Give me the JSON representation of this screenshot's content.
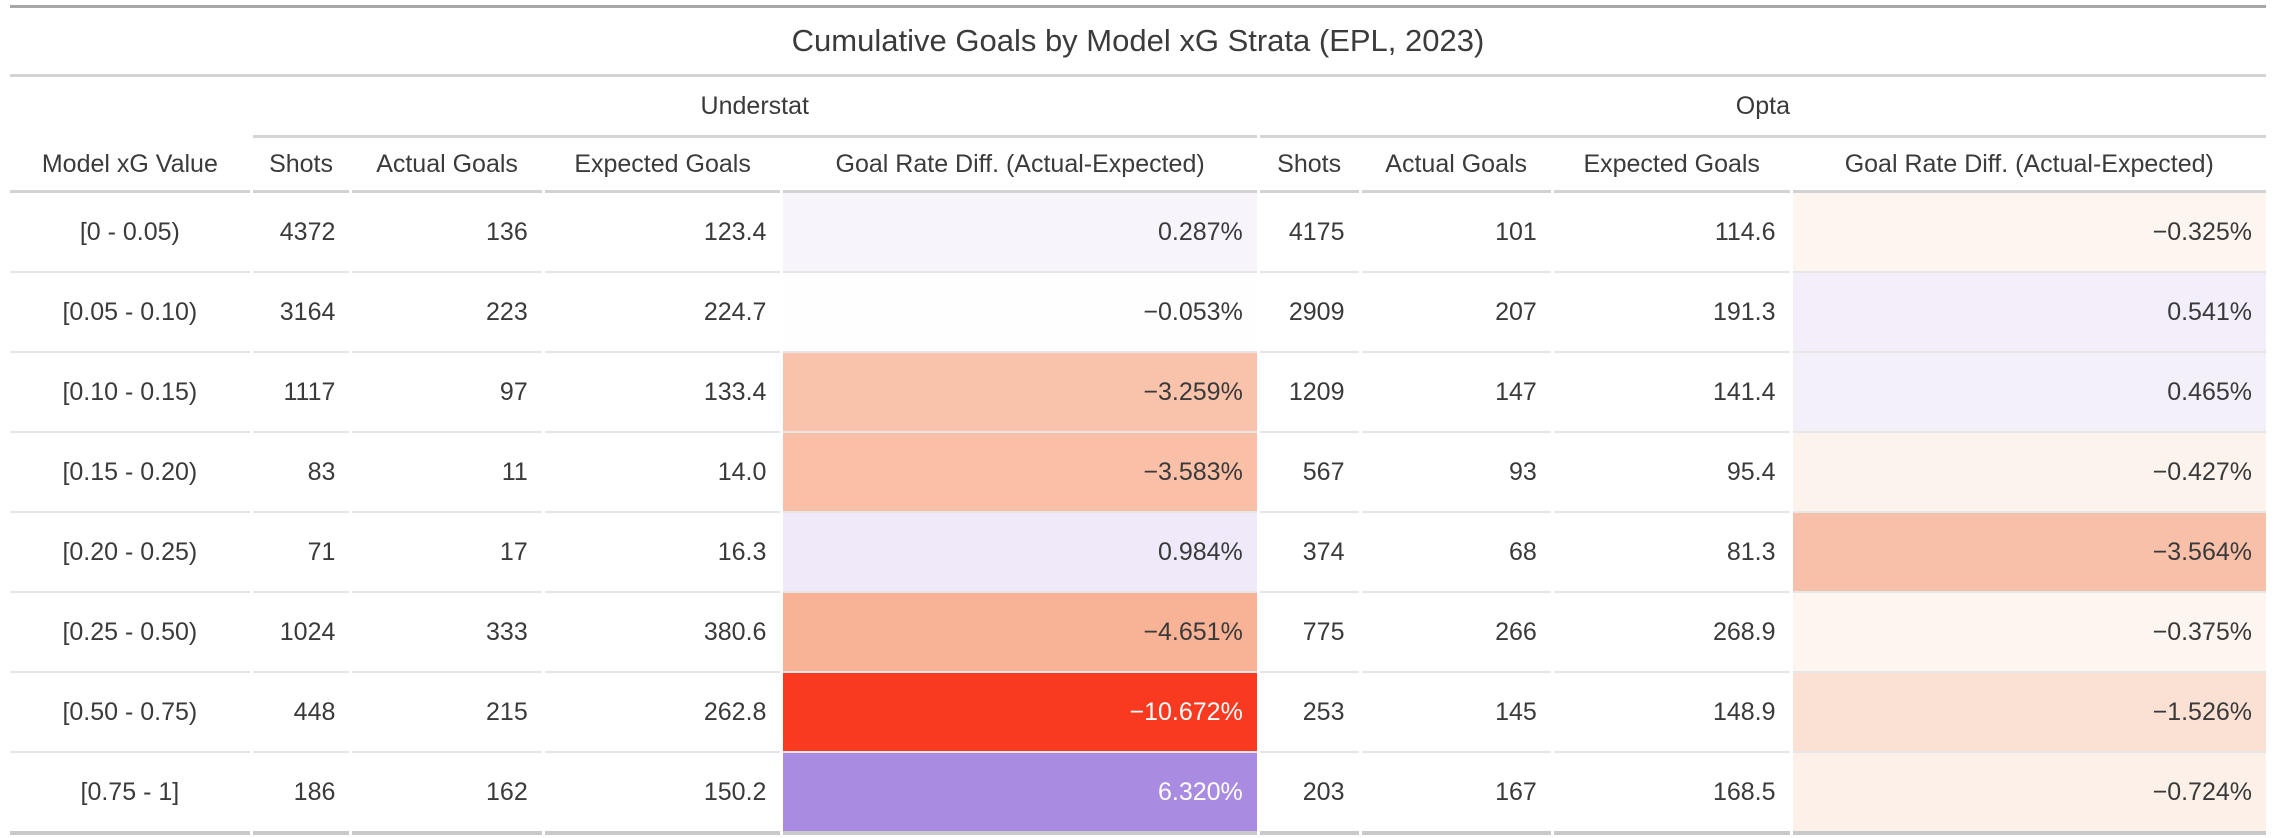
{
  "chart_data": {
    "type": "table",
    "title": "Cumulative Goals by Model xG Strata (EPL, 2023)",
    "row_label_header": "Model xG Value",
    "groups": [
      "Understat",
      "Opta"
    ],
    "columns": [
      "Shots",
      "Actual Goals",
      "Expected Goals",
      "Goal Rate Diff. (Actual-Expected)"
    ],
    "diff_colors": {
      "negative_strong": "#f93a20",
      "negative_mid": "#f9c0a8",
      "positive_strong": "#a98ce2",
      "positive_light": "#f1ebfa",
      "text_dark": "#3a3a3a",
      "text_light": "#ffffff"
    },
    "rows": [
      {
        "xg_bin": "[0 - 0.05)",
        "understat": {
          "shots": 4372,
          "actual_goals": 136,
          "expected_goals": "123.4",
          "goal_rate_diff": "0.287%",
          "diff_bg": "#f7f4fb",
          "diff_fg": "#3a3a3a"
        },
        "opta": {
          "shots": 4175,
          "actual_goals": 101,
          "expected_goals": "114.6",
          "goal_rate_diff": "−0.325%",
          "diff_bg": "#fdf5ef",
          "diff_fg": "#3a3a3a"
        }
      },
      {
        "xg_bin": "[0.05 - 0.10)",
        "understat": {
          "shots": 3164,
          "actual_goals": 223,
          "expected_goals": "224.7",
          "goal_rate_diff": "−0.053%",
          "diff_bg": "#fffefe",
          "diff_fg": "#3a3a3a"
        },
        "opta": {
          "shots": 2909,
          "actual_goals": 207,
          "expected_goals": "191.3",
          "goal_rate_diff": "0.541%",
          "diff_bg": "#f3eefa",
          "diff_fg": "#3a3a3a"
        }
      },
      {
        "xg_bin": "[0.10 - 0.15)",
        "understat": {
          "shots": 1117,
          "actual_goals": 97,
          "expected_goals": "133.4",
          "goal_rate_diff": "−3.259%",
          "diff_bg": "#f9c2ab",
          "diff_fg": "#3a3a3a"
        },
        "opta": {
          "shots": 1209,
          "actual_goals": 147,
          "expected_goals": "141.4",
          "goal_rate_diff": "0.465%",
          "diff_bg": "#f4f0fa",
          "diff_fg": "#3a3a3a"
        }
      },
      {
        "xg_bin": "[0.15 - 0.20)",
        "understat": {
          "shots": 83,
          "actual_goals": 11,
          "expected_goals": "14.0",
          "goal_rate_diff": "−3.583%",
          "diff_bg": "#f9bfa7",
          "diff_fg": "#3a3a3a"
        },
        "opta": {
          "shots": 567,
          "actual_goals": 93,
          "expected_goals": "95.4",
          "goal_rate_diff": "−0.427%",
          "diff_bg": "#fcf3ed",
          "diff_fg": "#3a3a3a"
        }
      },
      {
        "xg_bin": "[0.20 - 0.25)",
        "understat": {
          "shots": 71,
          "actual_goals": 17,
          "expected_goals": "16.3",
          "goal_rate_diff": "0.984%",
          "diff_bg": "#efe9f9",
          "diff_fg": "#3a3a3a"
        },
        "opta": {
          "shots": 374,
          "actual_goals": 68,
          "expected_goals": "81.3",
          "goal_rate_diff": "−3.564%",
          "diff_bg": "#f9c0a9",
          "diff_fg": "#3a3a3a"
        }
      },
      {
        "xg_bin": "[0.25 - 0.50)",
        "understat": {
          "shots": 1024,
          "actual_goals": 333,
          "expected_goals": "380.6",
          "goal_rate_diff": "−4.651%",
          "diff_bg": "#f8b295",
          "diff_fg": "#3a3a3a"
        },
        "opta": {
          "shots": 775,
          "actual_goals": 266,
          "expected_goals": "268.9",
          "goal_rate_diff": "−0.375%",
          "diff_bg": "#fdf5ef",
          "diff_fg": "#3a3a3a"
        }
      },
      {
        "xg_bin": "[0.50 - 0.75)",
        "understat": {
          "shots": 448,
          "actual_goals": 215,
          "expected_goals": "262.8",
          "goal_rate_diff": "−10.672%",
          "diff_bg": "#f93a20",
          "diff_fg": "#ffffff"
        },
        "opta": {
          "shots": 253,
          "actual_goals": 145,
          "expected_goals": "148.9",
          "goal_rate_diff": "−1.526%",
          "diff_bg": "#fbe0d4",
          "diff_fg": "#3a3a3a"
        }
      },
      {
        "xg_bin": "[0.75 - 1]",
        "understat": {
          "shots": 186,
          "actual_goals": 162,
          "expected_goals": "150.2",
          "goal_rate_diff": "6.320%",
          "diff_bg": "#a98ce2",
          "diff_fg": "#ffffff"
        },
        "opta": {
          "shots": 203,
          "actual_goals": 167,
          "expected_goals": "168.5",
          "goal_rate_diff": "−0.724%",
          "diff_bg": "#fcf0e9",
          "diff_fg": "#3a3a3a"
        }
      }
    ]
  }
}
